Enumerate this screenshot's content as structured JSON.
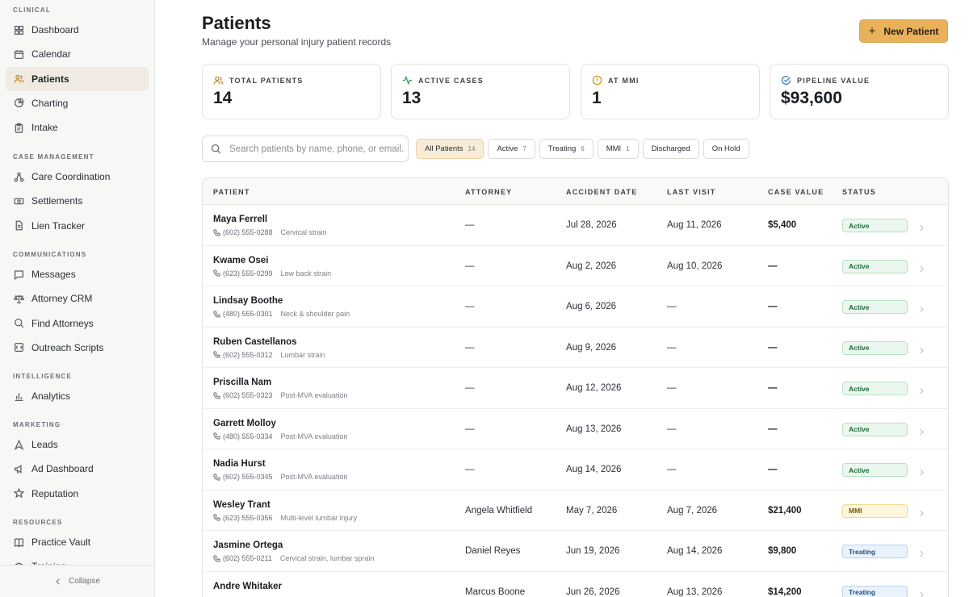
{
  "sidebar": {
    "sections": [
      {
        "title": "CLINICAL",
        "items": [
          {
            "label": "Dashboard",
            "icon": "dashboard-icon"
          },
          {
            "label": "Calendar",
            "icon": "calendar-icon"
          },
          {
            "label": "Patients",
            "icon": "users-icon",
            "active": true
          },
          {
            "label": "Charting",
            "icon": "chart-pie-icon"
          },
          {
            "label": "Intake",
            "icon": "clipboard-icon"
          }
        ]
      },
      {
        "title": "CASE MANAGEMENT",
        "items": [
          {
            "label": "Care Coordination",
            "icon": "network-icon"
          },
          {
            "label": "Settlements",
            "icon": "money-icon"
          },
          {
            "label": "Lien Tracker",
            "icon": "document-icon"
          }
        ]
      },
      {
        "title": "COMMUNICATIONS",
        "items": [
          {
            "label": "Messages",
            "icon": "message-icon"
          },
          {
            "label": "Attorney CRM",
            "icon": "scale-icon"
          },
          {
            "label": "Find Attorneys",
            "icon": "search-icon"
          },
          {
            "label": "Outreach Scripts",
            "icon": "script-icon"
          }
        ]
      },
      {
        "title": "INTELLIGENCE",
        "items": [
          {
            "label": "Analytics",
            "icon": "bar-chart-icon"
          }
        ]
      },
      {
        "title": "MARKETING",
        "items": [
          {
            "label": "Leads",
            "icon": "target-icon"
          },
          {
            "label": "Ad Dashboard",
            "icon": "megaphone-icon"
          },
          {
            "label": "Reputation",
            "icon": "star-icon"
          }
        ]
      },
      {
        "title": "RESOURCES",
        "items": [
          {
            "label": "Practice Vault",
            "icon": "book-icon"
          },
          {
            "label": "Training",
            "icon": "graduation-icon"
          }
        ]
      }
    ],
    "collapse_label": "Collapse"
  },
  "header": {
    "title": "Patients",
    "subtitle": "Manage your personal injury patient records",
    "new_button": "New Patient"
  },
  "stats": [
    {
      "label": "TOTAL PATIENTS",
      "value": "14",
      "icon": "users-icon",
      "color": "#c48a2c"
    },
    {
      "label": "ACTIVE CASES",
      "value": "13",
      "icon": "activity-icon",
      "color": "#2f9e5b"
    },
    {
      "label": "AT MMI",
      "value": "1",
      "icon": "alert-circle-icon",
      "color": "#d99a1e"
    },
    {
      "label": "PIPELINE VALUE",
      "value": "$93,600",
      "icon": "check-circle-icon",
      "color": "#3b7bc8"
    }
  ],
  "search": {
    "placeholder": "Search patients by name, phone, or email..."
  },
  "filters": [
    {
      "label": "All Patients",
      "count": "14",
      "active": true
    },
    {
      "label": "Active",
      "count": "7"
    },
    {
      "label": "Treating",
      "count": "6"
    },
    {
      "label": "MMI",
      "count": "1"
    },
    {
      "label": "Discharged",
      "count": ""
    },
    {
      "label": "On Hold",
      "count": ""
    }
  ],
  "table": {
    "columns": [
      "PATIENT",
      "ATTORNEY",
      "ACCIDENT DATE",
      "LAST VISIT",
      "CASE VALUE",
      "STATUS"
    ],
    "rows": [
      {
        "name": "Maya Ferrell",
        "phone": "(602) 555-0288",
        "diagnosis": "Cervical strain",
        "attorney": "—",
        "accident": "Jul 28, 2026",
        "last_visit": "Aug 11, 2026",
        "value": "$5,400",
        "status": "Active"
      },
      {
        "name": "Kwame Osei",
        "phone": "(623) 555-0299",
        "diagnosis": "Low back strain",
        "attorney": "—",
        "accident": "Aug 2, 2026",
        "last_visit": "Aug 10, 2026",
        "value": "—",
        "status": "Active"
      },
      {
        "name": "Lindsay Boothe",
        "phone": "(480) 555-0301",
        "diagnosis": "Neck & shoulder pain",
        "attorney": "—",
        "accident": "Aug 6, 2026",
        "last_visit": "—",
        "value": "—",
        "status": "Active"
      },
      {
        "name": "Ruben Castellanos",
        "phone": "(602) 555-0312",
        "diagnosis": "Lumbar strain",
        "attorney": "—",
        "accident": "Aug 9, 2026",
        "last_visit": "—",
        "value": "—",
        "status": "Active"
      },
      {
        "name": "Priscilla Nam",
        "phone": "(602) 555-0323",
        "diagnosis": "Post-MVA evaluation",
        "attorney": "—",
        "accident": "Aug 12, 2026",
        "last_visit": "—",
        "value": "—",
        "status": "Active"
      },
      {
        "name": "Garrett Molloy",
        "phone": "(480) 555-0334",
        "diagnosis": "Post-MVA evaluation",
        "attorney": "—",
        "accident": "Aug 13, 2026",
        "last_visit": "—",
        "value": "—",
        "status": "Active"
      },
      {
        "name": "Nadia Hurst",
        "phone": "(602) 555-0345",
        "diagnosis": "Post-MVA evaluation",
        "attorney": "—",
        "accident": "Aug 14, 2026",
        "last_visit": "—",
        "value": "—",
        "status": "Active"
      },
      {
        "name": "Wesley Trant",
        "phone": "(623) 555-0356",
        "diagnosis": "Multi-level lumbar injury",
        "attorney": "Angela Whitfield",
        "accident": "May 7, 2026",
        "last_visit": "Aug 7, 2026",
        "value": "$21,400",
        "status": "MMI"
      },
      {
        "name": "Jasmine Ortega",
        "phone": "(602) 555-0211",
        "diagnosis": "Cervical strain, lumbar sprain",
        "attorney": "Daniel Reyes",
        "accident": "Jun 19, 2026",
        "last_visit": "Aug 14, 2026",
        "value": "$9,800",
        "status": "Treating"
      },
      {
        "name": "Andre Whitaker",
        "phone": "",
        "diagnosis": "",
        "attorney": "Marcus Boone",
        "accident": "Jun 26, 2026",
        "last_visit": "Aug 13, 2026",
        "value": "$14,200",
        "status": "Treating"
      }
    ]
  }
}
